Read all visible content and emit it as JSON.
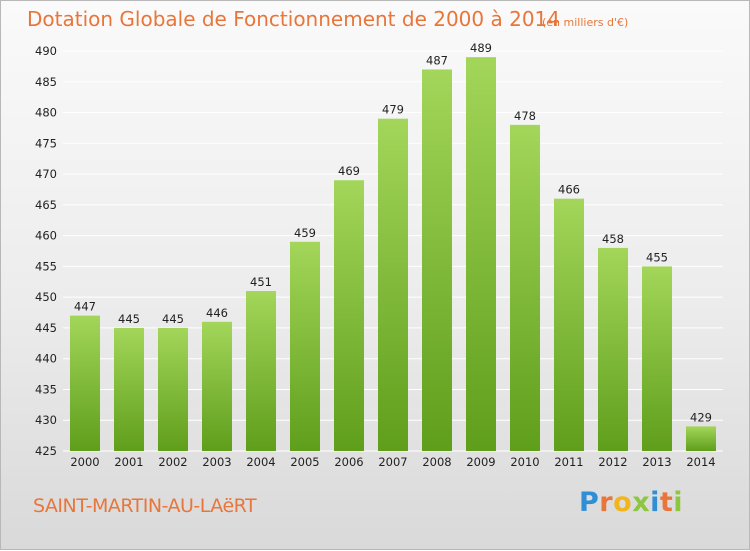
{
  "header": {
    "title": "Dotation Globale de Fonctionnement de 2000 à 2014",
    "subtitle": "(en milliers d'€)"
  },
  "footer": {
    "commune": "SAINT-MARTIN-AU-LAëRT",
    "logo_letters": [
      "P",
      "r",
      "o",
      "x",
      "i",
      "t",
      "i"
    ],
    "logo_colors": [
      "#2f8fd6",
      "#e8763a",
      "#f2b51c",
      "#8dc63f",
      "#2f8fd6",
      "#e8763a",
      "#8dc63f"
    ]
  },
  "colors": {
    "bar_top": "#a3d65a",
    "bar_bottom": "#5f9e1b",
    "accent": "#e8763a"
  },
  "chart_data": {
    "type": "bar",
    "title": "Dotation Globale de Fonctionnement de 2000 à 2014",
    "subtitle": "(en milliers d'€)",
    "categories": [
      "2000",
      "2001",
      "2002",
      "2003",
      "2004",
      "2005",
      "2006",
      "2007",
      "2008",
      "2009",
      "2010",
      "2011",
      "2012",
      "2013",
      "2014"
    ],
    "values": [
      447,
      445,
      445,
      446,
      451,
      459,
      469,
      479,
      487,
      489,
      478,
      466,
      458,
      455,
      429
    ],
    "ylim": [
      425,
      490
    ],
    "yticks": [
      425,
      430,
      435,
      440,
      445,
      450,
      455,
      460,
      465,
      470,
      475,
      480,
      485,
      490
    ],
    "grid": true,
    "xlabel": "",
    "ylabel": ""
  }
}
